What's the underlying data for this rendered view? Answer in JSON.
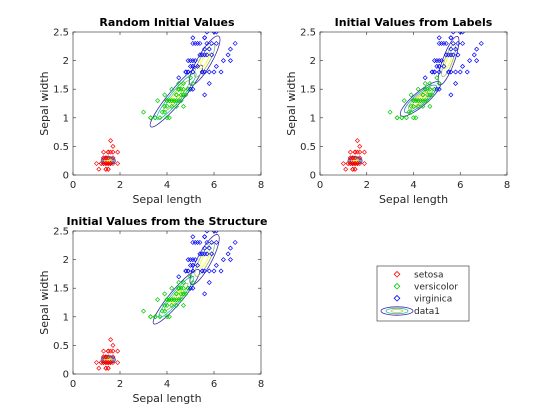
{
  "colors": {
    "setosa": "#ff0000",
    "versicolor": "#00cc00",
    "virginica": "#0000ff",
    "axes": "#262626",
    "contour_palette": [
      "#3d26a8",
      "#2c7fd9",
      "#14bdb4",
      "#87c24e",
      "#f2b93b",
      "#f9fb15"
    ]
  },
  "legend": {
    "entries": [
      "setosa",
      "versicolor",
      "virginica",
      "data1"
    ]
  },
  "chart_data": [
    {
      "type": "scatter",
      "title": "Random Initial Values",
      "xlabel": "Sepal length",
      "ylabel": "Sepal width",
      "xlim": [
        0,
        8
      ],
      "ylim": [
        0,
        2.5
      ],
      "xticks": [
        "0",
        "2",
        "4",
        "6",
        "8"
      ],
      "yticks": [
        "0",
        "0.5",
        "1",
        "1.5",
        "2",
        "2.5"
      ],
      "grid": false,
      "contours": [
        {
          "cx": 1.5,
          "cy": 0.25,
          "rx": 0.3,
          "ry": 0.18,
          "angle": 0,
          "levels": 6
        },
        {
          "cx": 4.4,
          "cy": 1.38,
          "rx": 1.7,
          "ry": 0.3,
          "angle": 50,
          "levels": 4
        },
        {
          "cx": 5.6,
          "cy": 2.0,
          "rx": 1.2,
          "ry": 0.3,
          "angle": 60,
          "levels": 3
        }
      ]
    },
    {
      "type": "scatter",
      "title": "Initial Values from Labels",
      "xlabel": "Sepal length",
      "ylabel": "Sepal width",
      "xlim": [
        0,
        8
      ],
      "ylim": [
        0,
        2.5
      ],
      "xticks": [
        "0",
        "2",
        "4",
        "6",
        "8"
      ],
      "yticks": [
        "0",
        "0.5",
        "1",
        "1.5",
        "2",
        "2.5"
      ],
      "grid": false,
      "contours": [
        {
          "cx": 1.5,
          "cy": 0.25,
          "rx": 0.3,
          "ry": 0.18,
          "angle": 0,
          "levels": 6
        },
        {
          "cx": 4.3,
          "cy": 1.33,
          "rx": 1.1,
          "ry": 0.3,
          "angle": 40,
          "levels": 5
        },
        {
          "cx": 5.5,
          "cy": 2.0,
          "rx": 1.1,
          "ry": 0.25,
          "angle": 70,
          "levels": 3
        }
      ]
    },
    {
      "type": "scatter",
      "title": "Initial Values from the Structure",
      "xlabel": "Sepal length",
      "ylabel": "Sepal width",
      "xlim": [
        0,
        8
      ],
      "ylim": [
        0,
        2.5
      ],
      "xticks": [
        "0",
        "2",
        "4",
        "6",
        "8"
      ],
      "yticks": [
        "0",
        "0.5",
        "1",
        "1.5",
        "2",
        "2.5"
      ],
      "grid": false,
      "contours": [
        {
          "cx": 1.5,
          "cy": 0.25,
          "rx": 0.3,
          "ry": 0.18,
          "angle": 0,
          "levels": 6
        },
        {
          "cx": 4.4,
          "cy": 1.35,
          "rx": 1.5,
          "ry": 0.28,
          "angle": 50,
          "levels": 4
        },
        {
          "cx": 5.6,
          "cy": 2.0,
          "rx": 1.2,
          "ry": 0.3,
          "angle": 62,
          "levels": 3
        }
      ]
    }
  ],
  "series": {
    "setosa": [
      [
        1.4,
        0.2
      ],
      [
        1.4,
        0.2
      ],
      [
        1.3,
        0.2
      ],
      [
        1.5,
        0.2
      ],
      [
        1.4,
        0.2
      ],
      [
        1.7,
        0.4
      ],
      [
        1.4,
        0.3
      ],
      [
        1.5,
        0.2
      ],
      [
        1.4,
        0.2
      ],
      [
        1.5,
        0.1
      ],
      [
        1.5,
        0.2
      ],
      [
        1.6,
        0.2
      ],
      [
        1.4,
        0.1
      ],
      [
        1.1,
        0.1
      ],
      [
        1.2,
        0.2
      ],
      [
        1.5,
        0.4
      ],
      [
        1.3,
        0.4
      ],
      [
        1.4,
        0.3
      ],
      [
        1.7,
        0.3
      ],
      [
        1.5,
        0.3
      ],
      [
        1.7,
        0.2
      ],
      [
        1.5,
        0.4
      ],
      [
        1.0,
        0.2
      ],
      [
        1.7,
        0.5
      ],
      [
        1.9,
        0.2
      ],
      [
        1.6,
        0.2
      ],
      [
        1.6,
        0.4
      ],
      [
        1.5,
        0.2
      ],
      [
        1.4,
        0.2
      ],
      [
        1.6,
        0.2
      ],
      [
        1.6,
        0.2
      ],
      [
        1.5,
        0.4
      ],
      [
        1.5,
        0.1
      ],
      [
        1.4,
        0.2
      ],
      [
        1.5,
        0.2
      ],
      [
        1.2,
        0.2
      ],
      [
        1.3,
        0.2
      ],
      [
        1.4,
        0.1
      ],
      [
        1.3,
        0.2
      ],
      [
        1.5,
        0.2
      ],
      [
        1.3,
        0.3
      ],
      [
        1.3,
        0.3
      ],
      [
        1.3,
        0.2
      ],
      [
        1.6,
        0.6
      ],
      [
        1.9,
        0.4
      ],
      [
        1.4,
        0.3
      ],
      [
        1.6,
        0.2
      ],
      [
        1.4,
        0.2
      ],
      [
        1.5,
        0.2
      ],
      [
        1.4,
        0.2
      ]
    ],
    "versicolor": [
      [
        4.7,
        1.4
      ],
      [
        4.5,
        1.5
      ],
      [
        4.9,
        1.5
      ],
      [
        4.0,
        1.3
      ],
      [
        4.6,
        1.5
      ],
      [
        4.5,
        1.3
      ],
      [
        4.7,
        1.6
      ],
      [
        3.3,
        1.0
      ],
      [
        4.6,
        1.3
      ],
      [
        3.9,
        1.4
      ],
      [
        3.5,
        1.0
      ],
      [
        4.2,
        1.5
      ],
      [
        4.0,
        1.0
      ],
      [
        4.7,
        1.4
      ],
      [
        3.6,
        1.3
      ],
      [
        4.4,
        1.4
      ],
      [
        4.5,
        1.5
      ],
      [
        4.1,
        1.0
      ],
      [
        4.5,
        1.5
      ],
      [
        3.9,
        1.1
      ],
      [
        4.8,
        1.8
      ],
      [
        4.0,
        1.3
      ],
      [
        4.9,
        1.5
      ],
      [
        4.7,
        1.2
      ],
      [
        4.3,
        1.3
      ],
      [
        4.4,
        1.4
      ],
      [
        4.8,
        1.4
      ],
      [
        5.0,
        1.7
      ],
      [
        4.5,
        1.5
      ],
      [
        3.5,
        1.0
      ],
      [
        3.8,
        1.1
      ],
      [
        3.7,
        1.0
      ],
      [
        3.9,
        1.2
      ],
      [
        5.1,
        1.6
      ],
      [
        4.5,
        1.5
      ],
      [
        4.5,
        1.6
      ],
      [
        4.7,
        1.5
      ],
      [
        4.4,
        1.3
      ],
      [
        4.1,
        1.3
      ],
      [
        4.0,
        1.3
      ],
      [
        4.4,
        1.2
      ],
      [
        4.6,
        1.4
      ],
      [
        4.0,
        1.2
      ],
      [
        3.3,
        1.0
      ],
      [
        4.2,
        1.3
      ],
      [
        4.2,
        1.2
      ],
      [
        4.2,
        1.3
      ],
      [
        4.3,
        1.3
      ],
      [
        3.0,
        1.1
      ],
      [
        4.1,
        1.3
      ]
    ],
    "virginica": [
      [
        6.0,
        2.5
      ],
      [
        5.1,
        1.9
      ],
      [
        5.9,
        2.1
      ],
      [
        5.6,
        1.8
      ],
      [
        5.8,
        2.2
      ],
      [
        6.6,
        2.1
      ],
      [
        4.5,
        1.7
      ],
      [
        6.3,
        1.8
      ],
      [
        5.8,
        1.8
      ],
      [
        6.1,
        2.5
      ],
      [
        5.1,
        2.0
      ],
      [
        5.3,
        1.9
      ],
      [
        5.5,
        2.1
      ],
      [
        5.0,
        2.0
      ],
      [
        5.1,
        2.4
      ],
      [
        5.3,
        2.3
      ],
      [
        5.5,
        1.8
      ],
      [
        6.7,
        2.2
      ],
      [
        6.9,
        2.3
      ],
      [
        5.0,
        1.5
      ],
      [
        5.7,
        2.3
      ],
      [
        4.9,
        2.0
      ],
      [
        6.7,
        2.0
      ],
      [
        4.9,
        1.8
      ],
      [
        5.7,
        2.1
      ],
      [
        6.0,
        1.8
      ],
      [
        4.8,
        1.8
      ],
      [
        4.9,
        1.8
      ],
      [
        5.6,
        2.1
      ],
      [
        5.8,
        1.6
      ],
      [
        6.1,
        1.9
      ],
      [
        6.4,
        2.0
      ],
      [
        5.6,
        2.2
      ],
      [
        5.1,
        1.5
      ],
      [
        5.6,
        1.4
      ],
      [
        6.1,
        2.3
      ],
      [
        5.6,
        2.4
      ],
      [
        5.5,
        1.8
      ],
      [
        4.8,
        1.8
      ],
      [
        5.4,
        2.1
      ],
      [
        5.6,
        2.4
      ],
      [
        5.1,
        2.3
      ],
      [
        5.1,
        1.9
      ],
      [
        5.9,
        2.3
      ],
      [
        5.7,
        2.5
      ],
      [
        5.2,
        2.3
      ],
      [
        5.0,
        1.9
      ],
      [
        5.2,
        2.0
      ],
      [
        5.4,
        2.3
      ],
      [
        5.1,
        1.8
      ]
    ]
  }
}
